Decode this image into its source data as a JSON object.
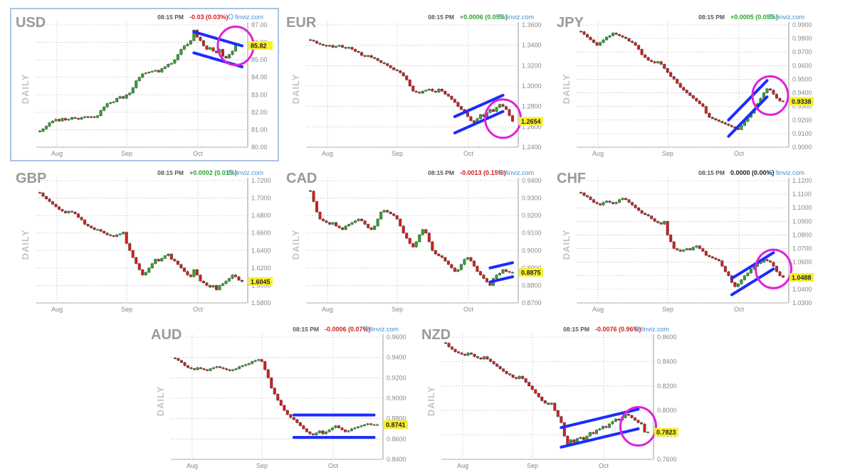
{
  "chart_data": [
    {
      "type": "candlestick",
      "title": "USD",
      "side_label": "DAILY",
      "time": "08:15 PM",
      "change": "-0.03 (0.03%)",
      "direction": "down",
      "source": "finviz.com",
      "last_price": "85.82",
      "y_ticks": [
        "87.00",
        "86.00",
        "85.00",
        "84.00",
        "83.00",
        "82.00",
        "81.00",
        "80.00"
      ],
      "ylim": [
        80.0,
        87.0
      ],
      "x_ticks": [
        "Aug",
        "Sep",
        "Oct"
      ],
      "closes": [
        80.9,
        81.05,
        81.2,
        81.4,
        81.5,
        81.6,
        81.5,
        81.65,
        81.55,
        81.6,
        81.7,
        81.65,
        81.6,
        81.7,
        81.75,
        81.7,
        81.75,
        81.7,
        81.8,
        82.1,
        82.3,
        82.5,
        82.55,
        82.6,
        82.8,
        82.9,
        82.8,
        83.0,
        83.1,
        83.4,
        83.8,
        84.0,
        84.2,
        84.25,
        84.3,
        84.35,
        84.4,
        84.3,
        84.5,
        84.6,
        84.75,
        84.8,
        85.0,
        85.3,
        85.6,
        85.8,
        85.9,
        86.1,
        86.7,
        86.3,
        86.1,
        85.8,
        85.6,
        85.7,
        85.5,
        85.4,
        85.6,
        85.2,
        85.1,
        85.3,
        85.5,
        85.9,
        85.85,
        85.82
      ],
      "annotations": [
        {
          "shape": "parallel-channel",
          "color": "#1a2cff",
          "from": [
            48,
            86.0
          ],
          "to": [
            63,
            85.2
          ],
          "width": 1.2
        },
        {
          "shape": "circle",
          "color": "#e020d8",
          "at": [
            61,
            85.8
          ]
        }
      ]
    },
    {
      "type": "candlestick",
      "title": "EUR",
      "side_label": "DAILY",
      "time": "08:15 PM",
      "change": "+0.0006 (0.05%)",
      "direction": "up",
      "source": "finviz.com",
      "last_price": "1.2654",
      "y_ticks": [
        "1.3600",
        "1.3400",
        "1.3200",
        "1.3000",
        "1.2800",
        "1.2600",
        "1.2400"
      ],
      "ylim": [
        1.24,
        1.36
      ],
      "x_ticks": [
        "Aug",
        "Sep",
        "Oct"
      ],
      "closes": [
        1.345,
        1.344,
        1.342,
        1.341,
        1.34,
        1.339,
        1.34,
        1.338,
        1.339,
        1.34,
        1.338,
        1.337,
        1.338,
        1.336,
        1.334,
        1.333,
        1.33,
        1.329,
        1.33,
        1.328,
        1.327,
        1.325,
        1.323,
        1.322,
        1.32,
        1.318,
        1.316,
        1.315,
        1.313,
        1.31,
        1.306,
        1.3,
        1.295,
        1.294,
        1.293,
        1.295,
        1.296,
        1.297,
        1.295,
        1.294,
        1.297,
        1.295,
        1.292,
        1.29,
        1.287,
        1.284,
        1.28,
        1.277,
        1.274,
        1.27,
        1.266,
        1.264,
        1.268,
        1.272,
        1.27,
        1.274,
        1.277,
        1.275,
        1.279,
        1.282,
        1.28,
        1.277,
        1.271,
        1.2654
      ],
      "annotations": [
        {
          "shape": "parallel-channel",
          "color": "#1a2cff",
          "from": [
            45,
            1.262
          ],
          "to": [
            60,
            1.283
          ],
          "width": 0.016
        },
        {
          "shape": "circle",
          "color": "#e020d8",
          "at": [
            60,
            1.268
          ]
        }
      ]
    },
    {
      "type": "candlestick",
      "title": "JPY",
      "side_label": "DAILY",
      "time": "08:15 PM",
      "change": "+0.0005 (0.05%)",
      "direction": "up",
      "source": "finviz.com",
      "last_price": "0.9338",
      "y_ticks": [
        "0.9900",
        "0.9800",
        "0.9700",
        "0.9600",
        "0.9500",
        "0.9400",
        "0.9300",
        "0.9200",
        "0.9100",
        "0.9000"
      ],
      "ylim": [
        0.9,
        0.99
      ],
      "x_ticks": [
        "Aug",
        "Sep",
        "Oct"
      ],
      "closes": [
        0.985,
        0.983,
        0.981,
        0.979,
        0.977,
        0.975,
        0.977,
        0.979,
        0.981,
        0.982,
        0.984,
        0.983,
        0.982,
        0.981,
        0.98,
        0.978,
        0.977,
        0.975,
        0.972,
        0.968,
        0.966,
        0.964,
        0.963,
        0.962,
        0.963,
        0.961,
        0.958,
        0.955,
        0.952,
        0.95,
        0.947,
        0.944,
        0.942,
        0.94,
        0.938,
        0.936,
        0.934,
        0.932,
        0.93,
        0.925,
        0.922,
        0.921,
        0.92,
        0.919,
        0.918,
        0.917,
        0.916,
        0.915,
        0.914,
        0.913,
        0.916,
        0.919,
        0.922,
        0.925,
        0.928,
        0.932,
        0.936,
        0.94,
        0.943,
        0.942,
        0.939,
        0.936,
        0.934,
        0.9338
      ],
      "annotations": [
        {
          "shape": "parallel-channel",
          "color": "#1a2cff",
          "from": [
            46,
            0.914
          ],
          "to": [
            58,
            0.943
          ],
          "width": 0.012
        },
        {
          "shape": "circle",
          "color": "#e020d8",
          "at": [
            59,
            0.938
          ]
        }
      ]
    },
    {
      "type": "candlestick",
      "title": "GBP",
      "side_label": "DAILY",
      "time": "08:15 PM",
      "change": "+0.0002 (0.01%)",
      "direction": "up",
      "source": "finviz.com",
      "last_price": "1.6045",
      "y_ticks": [
        "1.7200",
        "1.7000",
        "1.6800",
        "1.6600",
        "1.6400",
        "1.6200",
        "1.6000",
        "1.5800"
      ],
      "ylim": [
        1.58,
        1.72
      ],
      "x_ticks": [
        "Aug",
        "Sep",
        "Oct"
      ],
      "closes": [
        1.706,
        1.702,
        1.699,
        1.696,
        1.693,
        1.69,
        1.687,
        1.685,
        1.683,
        1.685,
        1.684,
        1.682,
        1.678,
        1.675,
        1.67,
        1.668,
        1.666,
        1.664,
        1.664,
        1.662,
        1.66,
        1.658,
        1.657,
        1.656,
        1.658,
        1.659,
        1.661,
        1.648,
        1.64,
        1.632,
        1.625,
        1.618,
        1.612,
        1.615,
        1.62,
        1.625,
        1.63,
        1.628,
        1.631,
        1.634,
        1.636,
        1.63,
        1.628,
        1.624,
        1.62,
        1.616,
        1.612,
        1.61,
        1.618,
        1.612,
        1.605,
        1.603,
        1.6,
        1.598,
        1.6,
        1.595,
        1.6,
        1.602,
        1.605,
        1.608,
        1.612,
        1.61,
        1.606,
        1.6045
      ],
      "annotations": []
    },
    {
      "type": "candlestick",
      "title": "CAD",
      "side_label": "DAILY",
      "time": "08:15 PM",
      "change": "-0.0013 (0.15%)",
      "direction": "down",
      "source": "finviz.com",
      "last_price": "0.8875",
      "y_ticks": [
        "0.9400",
        "0.9300",
        "0.9200",
        "0.9100",
        "0.9000",
        "0.8900",
        "0.8800",
        "0.8700"
      ],
      "ylim": [
        0.87,
        0.94
      ],
      "x_ticks": [
        "Aug",
        "Sep",
        "Oct"
      ],
      "closes": [
        0.934,
        0.928,
        0.922,
        0.918,
        0.917,
        0.916,
        0.915,
        0.916,
        0.914,
        0.913,
        0.912,
        0.914,
        0.915,
        0.916,
        0.917,
        0.918,
        0.917,
        0.915,
        0.913,
        0.912,
        0.914,
        0.918,
        0.922,
        0.923,
        0.922,
        0.921,
        0.92,
        0.918,
        0.914,
        0.91,
        0.907,
        0.904,
        0.902,
        0.905,
        0.909,
        0.912,
        0.91,
        0.905,
        0.9,
        0.898,
        0.897,
        0.896,
        0.894,
        0.892,
        0.89,
        0.888,
        0.889,
        0.892,
        0.895,
        0.896,
        0.894,
        0.891,
        0.888,
        0.886,
        0.884,
        0.882,
        0.88,
        0.884,
        0.886,
        0.887,
        0.889,
        0.888,
        0.8875,
        0.8875
      ],
      "annotations": [
        {
          "shape": "parallel-channel",
          "color": "#1a2cff",
          "from": [
            56,
            0.886
          ],
          "to": [
            63,
            0.889
          ],
          "width": 0.008
        }
      ]
    },
    {
      "type": "candlestick",
      "title": "CHF",
      "side_label": "DAILY",
      "time": "08:15 PM",
      "change": "0.0000 (0.00%)",
      "direction": "flat",
      "source": "finviz.com",
      "last_price": "1.0488",
      "y_ticks": [
        "1.1200",
        "1.1100",
        "1.1000",
        "1.0900",
        "1.0800",
        "1.0700",
        "1.0600",
        "1.0500",
        "1.0400",
        "1.0300"
      ],
      "ylim": [
        1.03,
        1.12
      ],
      "x_ticks": [
        "Aug",
        "Sep",
        "Oct"
      ],
      "closes": [
        1.111,
        1.109,
        1.108,
        1.106,
        1.104,
        1.103,
        1.102,
        1.104,
        1.105,
        1.104,
        1.103,
        1.104,
        1.106,
        1.107,
        1.106,
        1.104,
        1.102,
        1.1,
        1.098,
        1.096,
        1.095,
        1.094,
        1.092,
        1.09,
        1.089,
        1.088,
        1.09,
        1.08,
        1.075,
        1.07,
        1.069,
        1.068,
        1.069,
        1.07,
        1.069,
        1.071,
        1.072,
        1.07,
        1.068,
        1.065,
        1.064,
        1.063,
        1.062,
        1.061,
        1.057,
        1.053,
        1.05,
        1.045,
        1.042,
        1.044,
        1.047,
        1.05,
        1.052,
        1.055,
        1.057,
        1.059,
        1.06,
        1.062,
        1.061,
        1.06,
        1.057,
        1.053,
        1.05,
        1.0488
      ],
      "annotations": [
        {
          "shape": "parallel-channel",
          "color": "#1a2cff",
          "from": [
            47,
            1.042
          ],
          "to": [
            60,
            1.061
          ],
          "width": 0.012
        },
        {
          "shape": "circle",
          "color": "#e020d8",
          "at": [
            60,
            1.055
          ]
        }
      ]
    },
    {
      "type": "candlestick",
      "title": "AUD",
      "side_label": "DAILY",
      "time": "08:15 PM",
      "change": "-0.0006 (0.07%)",
      "direction": "down",
      "source": "finviz.com",
      "last_price": "0.8741",
      "y_ticks": [
        "0.9600",
        "0.9400",
        "0.9200",
        "0.9000",
        "0.8800",
        "0.8600",
        "0.8400"
      ],
      "ylim": [
        0.84,
        0.96
      ],
      "x_ticks": [
        "Aug",
        "Sep",
        "Oct"
      ],
      "closes": [
        0.939,
        0.937,
        0.935,
        0.932,
        0.93,
        0.929,
        0.928,
        0.93,
        0.929,
        0.928,
        0.927,
        0.929,
        0.93,
        0.931,
        0.93,
        0.929,
        0.928,
        0.927,
        0.928,
        0.929,
        0.931,
        0.932,
        0.933,
        0.934,
        0.936,
        0.937,
        0.938,
        0.936,
        0.928,
        0.92,
        0.91,
        0.904,
        0.898,
        0.893,
        0.888,
        0.884,
        0.881,
        0.879,
        0.876,
        0.873,
        0.87,
        0.867,
        0.865,
        0.864,
        0.866,
        0.868,
        0.865,
        0.867,
        0.869,
        0.871,
        0.873,
        0.871,
        0.869,
        0.867,
        0.868,
        0.87,
        0.871,
        0.872,
        0.873,
        0.874,
        0.875,
        0.874,
        0.8741,
        0.8741
      ],
      "annotations": [
        {
          "shape": "parallel-channel",
          "color": "#1a2cff",
          "from": [
            37,
            0.8725
          ],
          "to": [
            62,
            0.8725
          ],
          "width": 0.022
        }
      ]
    },
    {
      "type": "candlestick",
      "title": "NZD",
      "side_label": "DAILY",
      "time": "08:15 PM",
      "change": "-0.0076 (0.96%)",
      "direction": "down",
      "source": "finviz.com",
      "last_price": "0.7823",
      "y_ticks": [
        "0.8600",
        "0.8400",
        "0.8200",
        "0.8000",
        "0.7800",
        "0.7600"
      ],
      "ylim": [
        0.76,
        0.86
      ],
      "x_ticks": [
        "Aug",
        "Sep",
        "Oct"
      ],
      "closes": [
        0.855,
        0.852,
        0.85,
        0.848,
        0.847,
        0.846,
        0.845,
        0.847,
        0.846,
        0.844,
        0.843,
        0.842,
        0.844,
        0.842,
        0.84,
        0.838,
        0.836,
        0.834,
        0.832,
        0.83,
        0.829,
        0.827,
        0.826,
        0.828,
        0.826,
        0.823,
        0.82,
        0.817,
        0.814,
        0.811,
        0.808,
        0.806,
        0.805,
        0.806,
        0.8,
        0.795,
        0.79,
        0.779,
        0.772,
        0.776,
        0.774,
        0.777,
        0.778,
        0.776,
        0.779,
        0.782,
        0.781,
        0.784,
        0.785,
        0.787,
        0.786,
        0.789,
        0.791,
        0.793,
        0.792,
        0.794,
        0.797,
        0.796,
        0.794,
        0.792,
        0.79,
        0.789,
        0.7823,
        0.7823
      ],
      "annotations": [
        {
          "shape": "parallel-channel",
          "color": "#1a2cff",
          "from": [
            36,
            0.778
          ],
          "to": [
            60,
            0.793
          ],
          "width": 0.016
        },
        {
          "shape": "circle",
          "color": "#e020d8",
          "at": [
            60,
            0.787
          ]
        }
      ]
    }
  ],
  "colors": {
    "up": "#2ea62e",
    "down": "#d12020",
    "flat": "#222222",
    "axis_text": "#888888",
    "title_text": "#9a9a9a",
    "source_text": "#4a90c8",
    "grid": "#cccccc",
    "price_tag": "#f8f02a",
    "frame": "#a9c4e4"
  }
}
